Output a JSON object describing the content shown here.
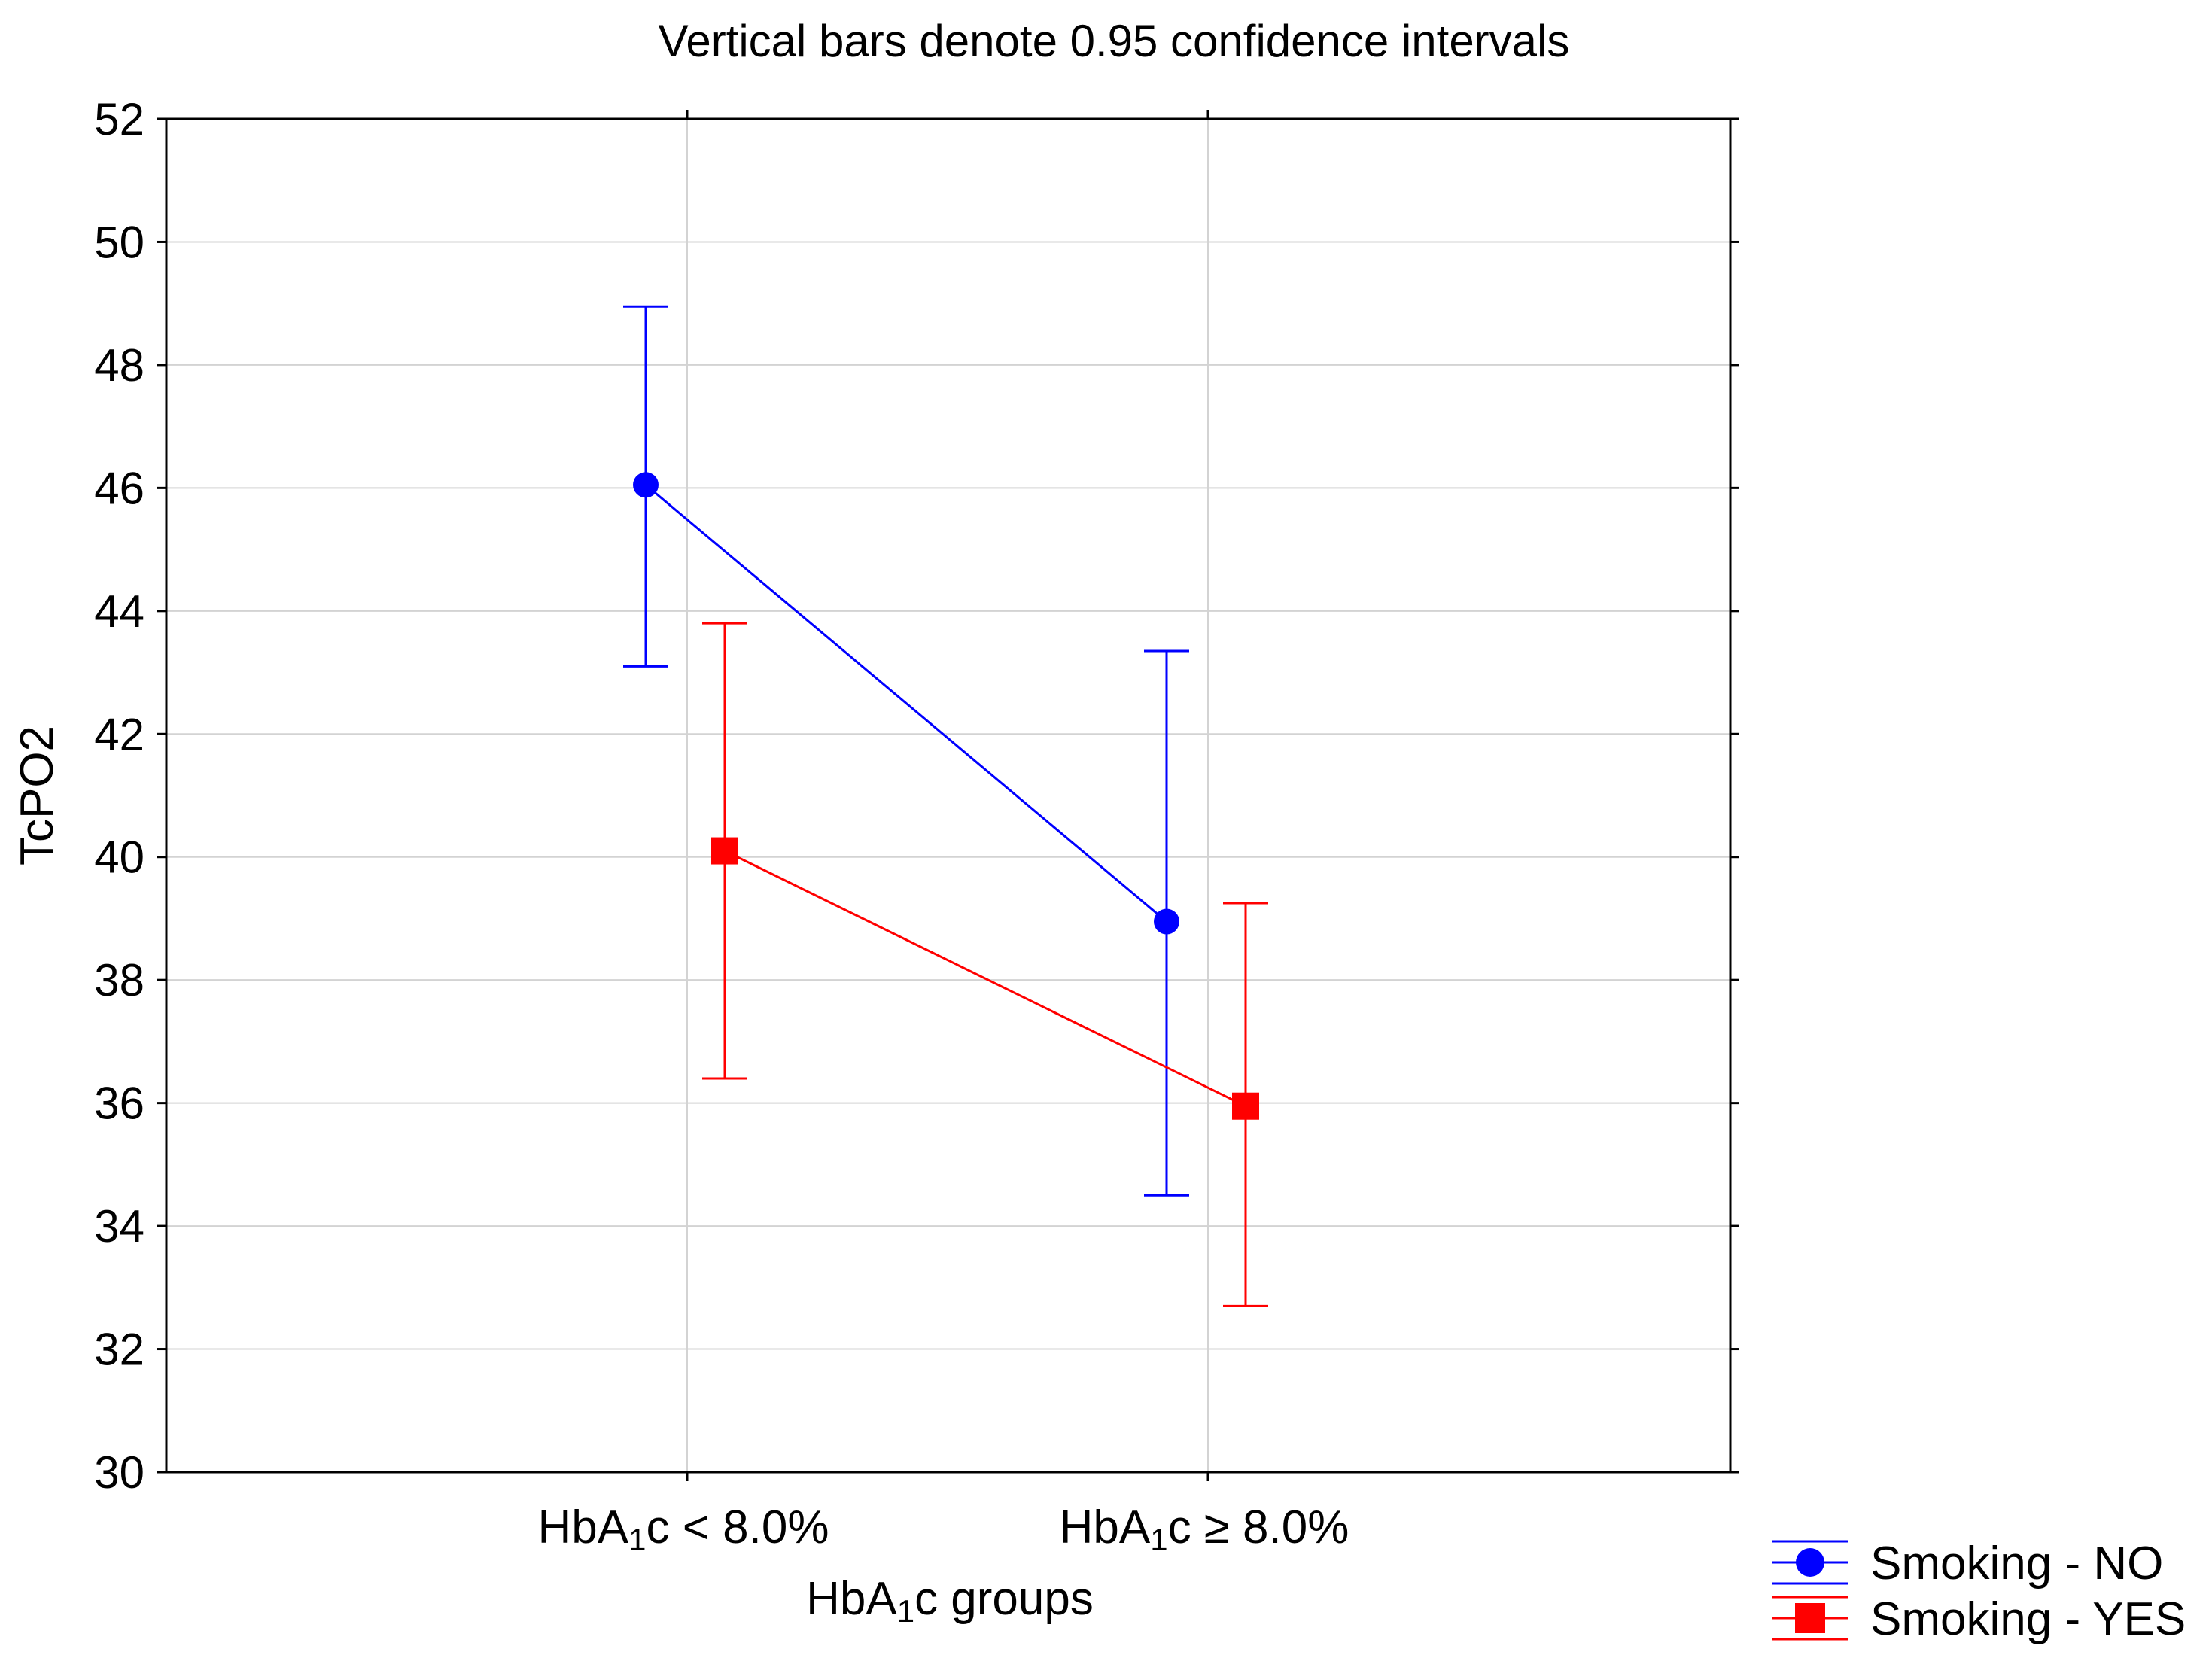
{
  "chart_data": {
    "type": "line",
    "title": "Vertical bars denote 0.95 confidence intervals",
    "xlabel": {
      "prefix": "HbA",
      "subscript": "1",
      "suffix": "c groups"
    },
    "ylabel": "TcPO2",
    "ylim": [
      30,
      52
    ],
    "yticks": [
      30,
      32,
      34,
      36,
      38,
      40,
      42,
      44,
      46,
      48,
      50,
      52
    ],
    "categories": [
      {
        "prefix": "HbA",
        "subscript": "1",
        "suffix": "c < 8.0%"
      },
      {
        "prefix": "HbA",
        "subscript": "1",
        "suffix": "c ≥ 8.0%"
      }
    ],
    "grid": true,
    "legend_position": "bottom-right",
    "series": [
      {
        "name": "Smoking - NO",
        "color": "#0000ff",
        "marker": "circle",
        "values": [
          46.05,
          38.95
        ],
        "ci_lower": [
          43.1,
          34.5
        ],
        "ci_upper": [
          48.95,
          43.35
        ]
      },
      {
        "name": "Smoking - YES",
        "color": "#ff0000",
        "marker": "square",
        "values": [
          40.1,
          35.95
        ],
        "ci_lower": [
          36.4,
          32.7
        ],
        "ci_upper": [
          43.8,
          39.25
        ]
      }
    ]
  }
}
